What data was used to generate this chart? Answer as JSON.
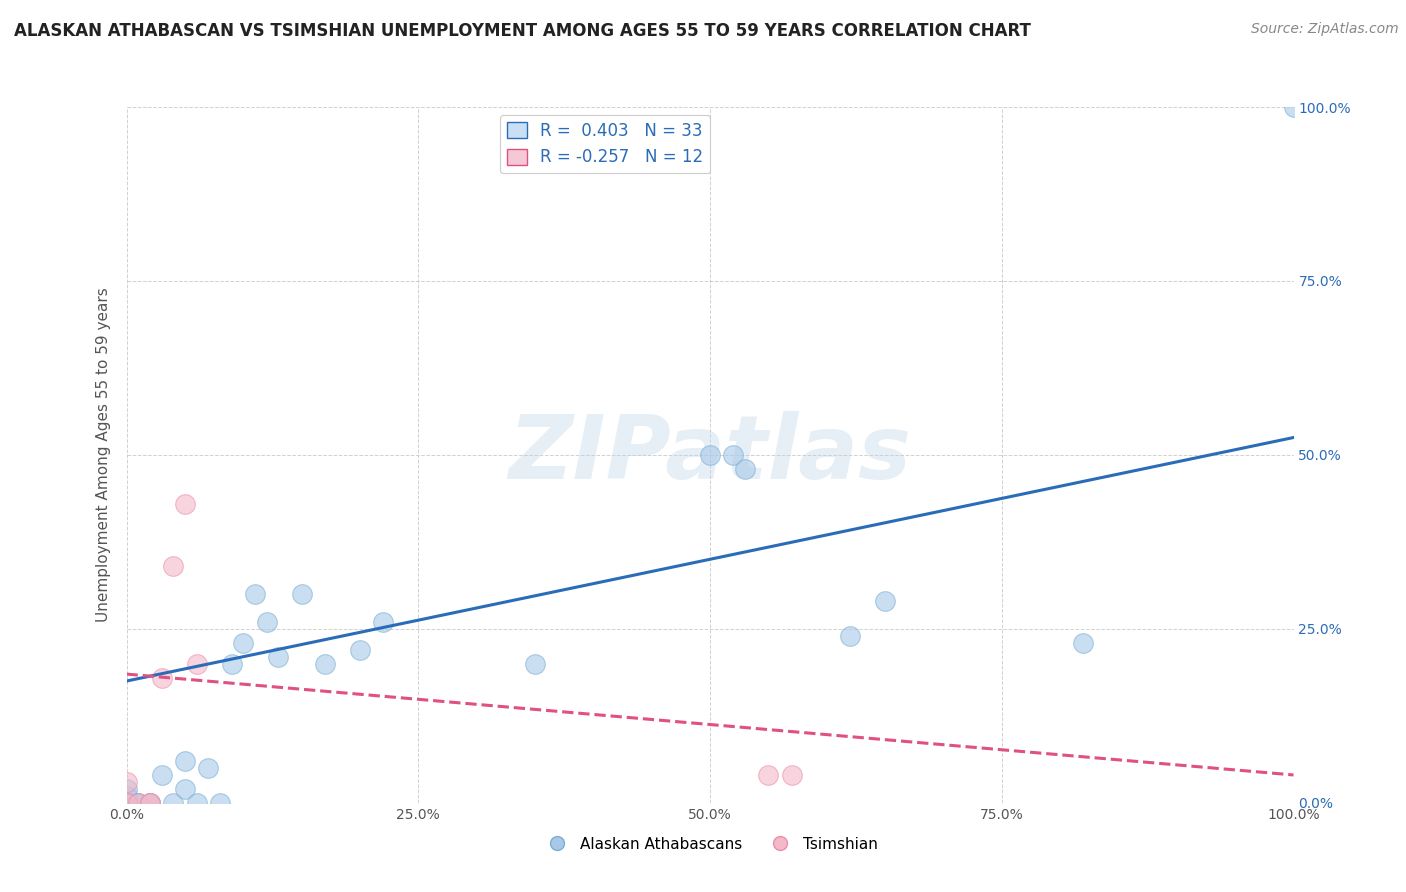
{
  "title": "ALASKAN ATHABASCAN VS TSIMSHIAN UNEMPLOYMENT AMONG AGES 55 TO 59 YEARS CORRELATION CHART",
  "source": "Source: ZipAtlas.com",
  "ylabel": "Unemployment Among Ages 55 to 59 years",
  "xlim": [
    0.0,
    1.0
  ],
  "ylim": [
    0.0,
    1.0
  ],
  "xtick_vals": [
    0.0,
    0.25,
    0.5,
    0.75,
    1.0
  ],
  "xtick_labels": [
    "0.0%",
    "25.0%",
    "50.0%",
    "75.0%",
    "100.0%"
  ],
  "ytick_vals": [
    0.0,
    0.25,
    0.5,
    0.75,
    1.0
  ],
  "ytick_labels_left": [
    "",
    "",
    "",
    "",
    ""
  ],
  "ytick_labels_right": [
    "0.0%",
    "25.0%",
    "50.0%",
    "75.0%",
    "100.0%"
  ],
  "blue_color": "#a8c8e8",
  "blue_edge_color": "#7aafd4",
  "pink_color": "#f4b8c8",
  "pink_edge_color": "#e890a8",
  "blue_line_color": "#2b6cb8",
  "pink_line_color": "#e05080",
  "legend_blue_label": "R =  0.403   N = 33",
  "legend_pink_label": "R = -0.257   N = 12",
  "legend_blue_face": "#c8dff4",
  "legend_pink_face": "#f4c8d4",
  "legend_blue_edge": "#2b6cb8",
  "legend_pink_edge": "#e05080",
  "watermark_text": "ZIPatlas",
  "blue_scatter_x": [
    0.0,
    0.0,
    0.0,
    0.0,
    0.0,
    0.01,
    0.01,
    0.02,
    0.02,
    0.03,
    0.04,
    0.05,
    0.05,
    0.06,
    0.07,
    0.08,
    0.09,
    0.1,
    0.11,
    0.12,
    0.13,
    0.15,
    0.17,
    0.2,
    0.22,
    0.35,
    0.5,
    0.52,
    0.53,
    0.62,
    0.65,
    0.82,
    1.0
  ],
  "blue_scatter_y": [
    0.0,
    0.0,
    0.0,
    0.01,
    0.02,
    0.0,
    0.0,
    0.0,
    0.0,
    0.04,
    0.0,
    0.02,
    0.06,
    0.0,
    0.05,
    0.0,
    0.2,
    0.23,
    0.3,
    0.26,
    0.21,
    0.3,
    0.2,
    0.22,
    0.26,
    0.2,
    0.5,
    0.5,
    0.48,
    0.24,
    0.29,
    0.23,
    1.0
  ],
  "pink_scatter_x": [
    0.0,
    0.0,
    0.0,
    0.01,
    0.02,
    0.02,
    0.03,
    0.04,
    0.05,
    0.06,
    0.55,
    0.57
  ],
  "pink_scatter_y": [
    0.0,
    0.0,
    0.03,
    0.0,
    0.0,
    0.0,
    0.18,
    0.34,
    0.43,
    0.2,
    0.04,
    0.04
  ],
  "blue_trendline_x": [
    0.0,
    1.0
  ],
  "blue_trendline_y": [
    0.175,
    0.525
  ],
  "pink_trendline_x": [
    0.0,
    1.0
  ],
  "pink_trendline_y": [
    0.185,
    0.04
  ],
  "background_color": "#ffffff",
  "grid_color": "#cccccc",
  "title_fontsize": 12,
  "axis_label_fontsize": 11,
  "tick_fontsize": 10,
  "source_fontsize": 10,
  "legend_fontsize": 12,
  "scatter_size": 200,
  "scatter_alpha": 0.6
}
